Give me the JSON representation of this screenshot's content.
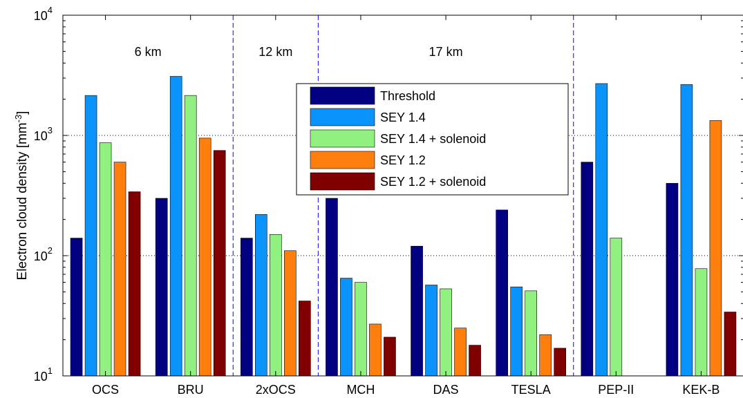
{
  "chart_data": {
    "type": "bar",
    "yscale": "log",
    "ylim": [
      10,
      10000
    ],
    "ylabel": "Electron cloud density [mm",
    "ylabel_sup": "-3",
    "ylabel_end": "]",
    "ytick_labels": [
      {
        "base": "10",
        "exp": "1"
      },
      {
        "base": "10",
        "exp": "2"
      },
      {
        "base": "10",
        "exp": "3"
      },
      {
        "base": "10",
        "exp": "4"
      }
    ],
    "categories": [
      "OCS",
      "BRU",
      "2xOCS",
      "MCH",
      "DAS",
      "TESLA",
      "PEP-II",
      "KEK-B"
    ],
    "series": [
      {
        "name": "Threshold",
        "color": "#000080",
        "values": [
          140,
          300,
          140,
          300,
          120,
          240,
          600,
          400
        ]
      },
      {
        "name": "SEY 1.4",
        "color": "#0A93FA",
        "values": [
          2150,
          3100,
          220,
          65,
          57,
          55,
          2700,
          2650
        ]
      },
      {
        "name": "SEY 1.4 + solenoid",
        "color": "#90F080",
        "values": [
          870,
          2150,
          150,
          60,
          53,
          51,
          140,
          78
        ]
      },
      {
        "name": "SEY 1.2",
        "color": "#FF7F0E",
        "values": [
          600,
          950,
          110,
          27,
          25,
          22,
          null,
          1330
        ]
      },
      {
        "name": "SEY 1.2 + solenoid",
        "color": "#800000",
        "values": [
          340,
          750,
          42,
          21,
          18,
          17,
          null,
          34
        ]
      }
    ],
    "regions": [
      {
        "label": "6 km",
        "center_category": 0.5
      },
      {
        "label": "12 km",
        "center_category": 2
      },
      {
        "label": "17 km",
        "center_category": 4
      }
    ],
    "region_dividers_after": [
      1,
      2,
      5
    ],
    "grid": {
      "y_major_lines": "dotted"
    },
    "legend_placement": "upper-center"
  }
}
